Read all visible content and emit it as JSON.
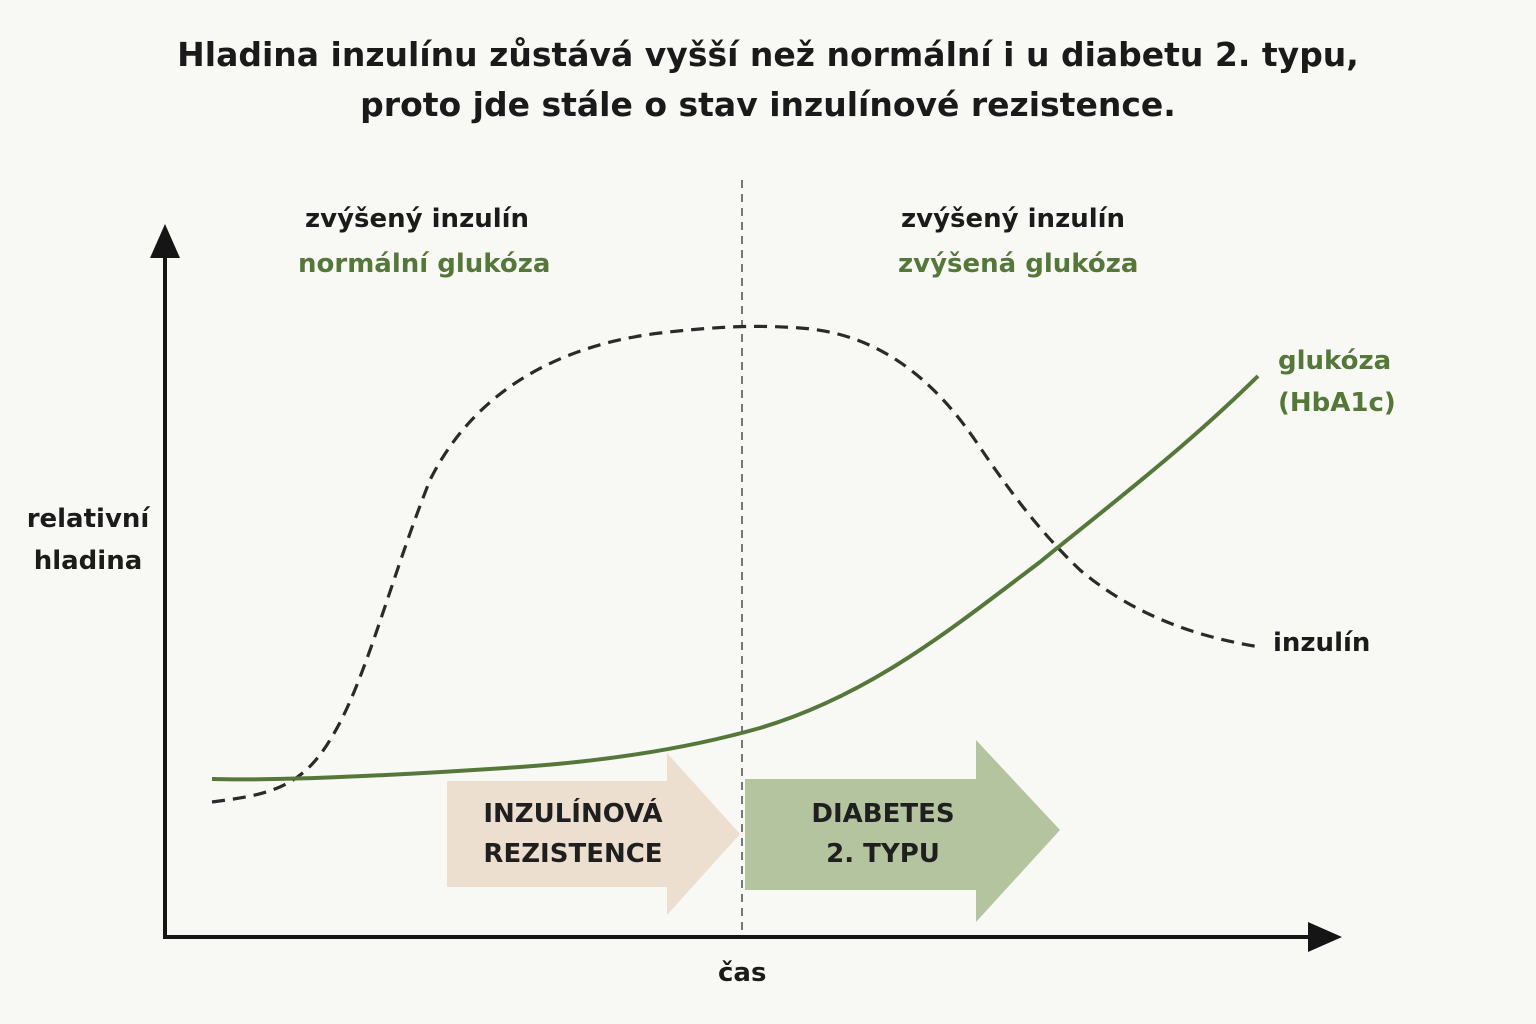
{
  "title": {
    "line1": "Hladina inzulínu zůstává vyšší než normální i u diabetu 2. typu,",
    "line2": "proto jde stále o stav inzulínové rezistence."
  },
  "axes": {
    "y_label_line1": "relativní",
    "y_label_line2": "hladina",
    "x_label": "čas"
  },
  "phases": {
    "left": {
      "insulin": "zvýšený inzulín",
      "glucose": "normální glukóza"
    },
    "right": {
      "insulin": "zvýšený inzulín",
      "glucose": "zvýšená glukóza"
    }
  },
  "series": {
    "glucose_line1": "glukóza",
    "glucose_line2": "(HbA1c)",
    "insulin": "inzulín"
  },
  "stages": {
    "resistance_line1": "INZULÍNOVÁ",
    "resistance_line2": "REZISTENCE",
    "diabetes_line1": "DIABETES",
    "diabetes_line2": "2. TYPU"
  },
  "colors": {
    "glucose": "#55783a",
    "insulin": "#2a2a2a",
    "resistance_arrow": "#ecdfd0",
    "diabetes_arrow": "#b4c49e",
    "axis": "#151515",
    "divider": "#777777"
  }
}
